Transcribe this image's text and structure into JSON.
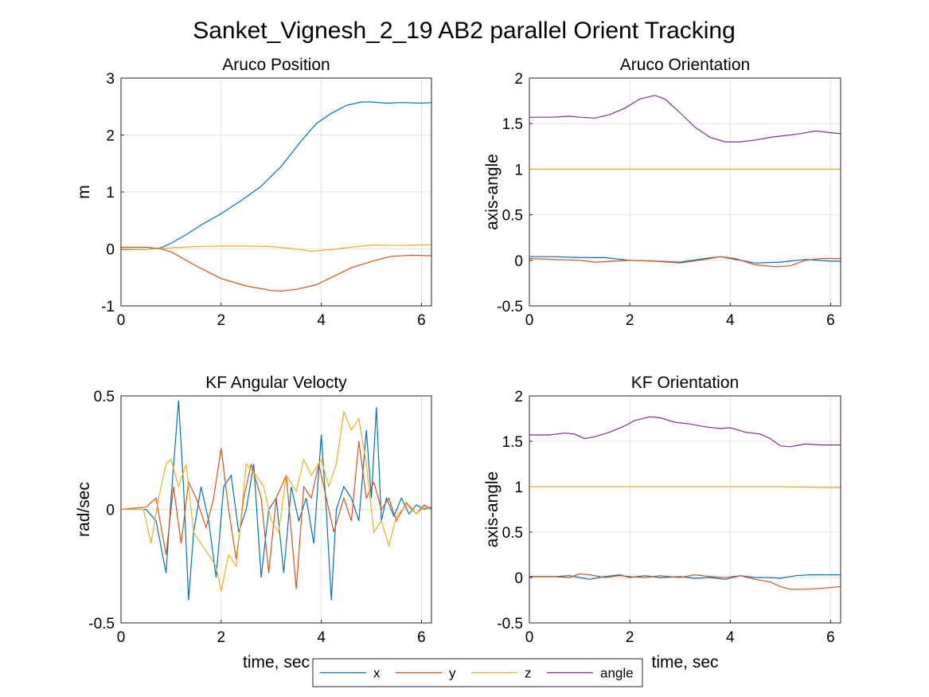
{
  "figure": {
    "title": "Sanket_Vignesh_2_19 AB2 parallel Orient Tracking"
  },
  "legend": {
    "placement": "bottom-center",
    "entries": [
      {
        "label": "x",
        "color": "#0072BD"
      },
      {
        "label": "y",
        "color": "#D95319"
      },
      {
        "label": "z",
        "color": "#EDB120"
      },
      {
        "label": "angle",
        "color": "#7E2F8E"
      }
    ]
  },
  "chart_data": [
    {
      "type": "line",
      "title": "Aruco Position",
      "xlabel": "",
      "ylabel": "m",
      "xlim": [
        0,
        6.2
      ],
      "ylim": [
        -1,
        3
      ],
      "xticks": [
        "0",
        "2",
        "4",
        "6"
      ],
      "yticks": [
        "-1",
        "0",
        "1",
        "2",
        "3"
      ],
      "grid": true,
      "series": [
        {
          "name": "x",
          "color": "#0072BD",
          "x": [
            0,
            0.5,
            0.8,
            1.0,
            1.3,
            1.6,
            2.0,
            2.4,
            2.8,
            3.2,
            3.6,
            3.9,
            4.2,
            4.5,
            4.8,
            5.0,
            5.3,
            5.6,
            6.0,
            6.2
          ],
          "y": [
            -0.01,
            -0.01,
            0.02,
            0.1,
            0.25,
            0.42,
            0.62,
            0.85,
            1.1,
            1.45,
            1.9,
            2.2,
            2.38,
            2.52,
            2.58,
            2.58,
            2.56,
            2.57,
            2.56,
            2.57
          ]
        },
        {
          "name": "y",
          "color": "#D95319",
          "x": [
            0,
            0.5,
            0.8,
            1.0,
            1.5,
            2.0,
            2.5,
            3.0,
            3.2,
            3.5,
            3.9,
            4.2,
            4.6,
            5.0,
            5.4,
            5.8,
            6.2
          ],
          "y": [
            0.03,
            0.03,
            0.0,
            -0.05,
            -0.3,
            -0.52,
            -0.65,
            -0.73,
            -0.74,
            -0.71,
            -0.63,
            -0.5,
            -0.33,
            -0.22,
            -0.13,
            -0.11,
            -0.12
          ]
        },
        {
          "name": "z",
          "color": "#EDB120",
          "x": [
            0,
            0.5,
            1.0,
            1.5,
            2.0,
            2.5,
            3.0,
            3.5,
            3.8,
            4.1,
            4.5,
            5.0,
            5.5,
            6.0,
            6.2
          ],
          "y": [
            0.0,
            -0.01,
            0.02,
            0.04,
            0.05,
            0.05,
            0.04,
            0.0,
            -0.04,
            -0.02,
            0.02,
            0.07,
            0.06,
            0.07,
            0.07
          ]
        }
      ]
    },
    {
      "type": "line",
      "title": "Aruco Orientation",
      "xlabel": "",
      "ylabel": "axis-angle",
      "xlim": [
        0,
        6.2
      ],
      "ylim": [
        -0.5,
        2
      ],
      "xticks": [
        "0",
        "2",
        "4",
        "6"
      ],
      "yticks": [
        "-0.5",
        "0",
        "0.5",
        "1",
        "1.5",
        "2"
      ],
      "grid": true,
      "series": [
        {
          "name": "x",
          "color": "#0072BD",
          "x": [
            0,
            0.5,
            1.0,
            1.5,
            2.0,
            2.5,
            3.0,
            3.5,
            3.8,
            4.1,
            4.5,
            5.0,
            5.5,
            6.0,
            6.2
          ],
          "y": [
            0.04,
            0.04,
            0.03,
            0.03,
            0.0,
            -0.01,
            -0.02,
            0.02,
            0.04,
            0.01,
            -0.03,
            -0.02,
            0.01,
            -0.01,
            -0.01
          ]
        },
        {
          "name": "y",
          "color": "#D95319",
          "x": [
            0,
            0.5,
            1.0,
            1.3,
            1.7,
            2.0,
            2.5,
            3.0,
            3.5,
            3.8,
            4.1,
            4.5,
            4.9,
            5.2,
            5.5,
            5.8,
            6.2
          ],
          "y": [
            0.02,
            0.01,
            0.0,
            -0.02,
            -0.01,
            0.0,
            -0.01,
            -0.03,
            0.01,
            0.04,
            0.02,
            -0.05,
            -0.07,
            -0.06,
            0.0,
            0.02,
            0.02
          ]
        },
        {
          "name": "z",
          "color": "#EDB120",
          "x": [
            0,
            1.0,
            2.0,
            3.0,
            4.0,
            5.0,
            6.0,
            6.2
          ],
          "y": [
            1.0,
            1.0,
            1.0,
            1.0,
            1.0,
            1.0,
            1.0,
            1.0
          ]
        },
        {
          "name": "angle",
          "color": "#7E2F8E",
          "x": [
            0,
            0.4,
            0.8,
            1.0,
            1.3,
            1.6,
            1.9,
            2.2,
            2.5,
            2.7,
            3.0,
            3.3,
            3.6,
            3.9,
            4.2,
            4.5,
            4.8,
            5.1,
            5.4,
            5.7,
            6.0,
            6.2
          ],
          "y": [
            1.57,
            1.57,
            1.58,
            1.57,
            1.56,
            1.6,
            1.67,
            1.77,
            1.81,
            1.77,
            1.62,
            1.46,
            1.35,
            1.3,
            1.3,
            1.32,
            1.35,
            1.37,
            1.39,
            1.42,
            1.4,
            1.39
          ]
        }
      ]
    },
    {
      "type": "line",
      "title": "KF Angular Velocty",
      "xlabel": "time, sec",
      "ylabel": "rad/sec",
      "xlim": [
        0,
        6.2
      ],
      "ylim": [
        -0.5,
        0.5
      ],
      "xticks": [
        "0",
        "2",
        "4",
        "6"
      ],
      "yticks": [
        "-0.5",
        "0",
        "0.5"
      ],
      "grid": true,
      "series": [
        {
          "name": "x",
          "color": "#0072BD",
          "x": [
            0,
            0.5,
            0.7,
            0.9,
            1.0,
            1.15,
            1.25,
            1.35,
            1.45,
            1.6,
            1.75,
            1.9,
            2.05,
            2.2,
            2.35,
            2.5,
            2.65,
            2.8,
            2.95,
            3.1,
            3.25,
            3.4,
            3.55,
            3.7,
            3.85,
            4.0,
            4.1,
            4.2,
            4.3,
            4.45,
            4.6,
            4.75,
            4.9,
            5.0,
            5.1,
            5.2,
            5.3,
            5.45,
            5.6,
            5.75,
            5.9,
            6.05,
            6.2
          ],
          "y": [
            0.0,
            0.0,
            -0.05,
            -0.28,
            0.05,
            0.48,
            0.1,
            -0.4,
            -0.1,
            0.1,
            -0.05,
            -0.3,
            0.1,
            0.15,
            -0.1,
            0.0,
            0.2,
            -0.3,
            0.0,
            0.05,
            -0.28,
            0.1,
            -0.05,
            0.05,
            -0.15,
            0.33,
            0.0,
            -0.4,
            0.0,
            0.1,
            0.05,
            -0.05,
            0.35,
            0.05,
            0.45,
            -0.05,
            0.05,
            -0.03,
            0.05,
            -0.02,
            0.02,
            0.0,
            0.01
          ]
        },
        {
          "name": "y",
          "color": "#D95319",
          "x": [
            0,
            0.5,
            0.7,
            0.9,
            1.05,
            1.2,
            1.35,
            1.5,
            1.7,
            1.85,
            2.0,
            2.15,
            2.3,
            2.45,
            2.6,
            2.8,
            2.95,
            3.1,
            3.3,
            3.5,
            3.65,
            3.8,
            3.95,
            4.1,
            4.25,
            4.45,
            4.6,
            4.75,
            4.9,
            5.05,
            5.2,
            5.35,
            5.5,
            5.7,
            5.9,
            6.05,
            6.2
          ],
          "y": [
            0.0,
            0.01,
            0.05,
            -0.2,
            0.1,
            -0.15,
            0.12,
            0.05,
            -0.08,
            0.05,
            0.27,
            0.0,
            -0.22,
            0.05,
            0.2,
            0.05,
            -0.28,
            0.05,
            0.15,
            -0.35,
            0.1,
            0.05,
            0.2,
            0.05,
            -0.1,
            0.05,
            -0.05,
            0.3,
            0.05,
            0.12,
            0.0,
            0.05,
            -0.05,
            0.03,
            -0.02,
            0.02,
            0.0
          ]
        },
        {
          "name": "z",
          "color": "#EDB120",
          "x": [
            0,
            0.45,
            0.6,
            0.75,
            0.9,
            1.0,
            1.15,
            1.3,
            1.45,
            1.6,
            1.75,
            1.9,
            2.0,
            2.15,
            2.3,
            2.5,
            2.7,
            2.85,
            3.0,
            3.15,
            3.3,
            3.5,
            3.65,
            3.8,
            4.0,
            4.15,
            4.3,
            4.45,
            4.6,
            4.75,
            4.9,
            5.05,
            5.2,
            5.35,
            5.5,
            5.7,
            5.9,
            6.05,
            6.2
          ],
          "y": [
            0.0,
            0.0,
            -0.15,
            0.05,
            0.2,
            0.22,
            0.1,
            0.2,
            -0.1,
            -0.15,
            -0.2,
            -0.25,
            -0.36,
            -0.2,
            -0.25,
            0.2,
            0.15,
            0.1,
            -0.05,
            -0.1,
            0.15,
            0.08,
            0.22,
            0.15,
            0.22,
            0.1,
            0.2,
            0.43,
            0.35,
            0.4,
            0.2,
            -0.1,
            -0.05,
            -0.16,
            -0.03,
            0.02,
            -0.02,
            0.01,
            0.0
          ]
        }
      ]
    },
    {
      "type": "line",
      "title": "KF Orientation",
      "xlabel": "time, sec",
      "ylabel": "axis-angle",
      "xlim": [
        0,
        6.2
      ],
      "ylim": [
        -0.5,
        2
      ],
      "xticks": [
        "0",
        "2",
        "4",
        "6"
      ],
      "yticks": [
        "-0.5",
        "0",
        "0.5",
        "1",
        "1.5",
        "2"
      ],
      "grid": true,
      "series": [
        {
          "name": "x",
          "color": "#0072BD",
          "x": [
            0,
            0.5,
            0.8,
            1.0,
            1.2,
            1.5,
            1.8,
            2.0,
            2.3,
            2.6,
            3.0,
            3.3,
            3.6,
            3.9,
            4.2,
            4.5,
            4.8,
            5.0,
            5.3,
            5.6,
            6.0,
            6.2
          ],
          "y": [
            0.01,
            0.01,
            0.02,
            0.0,
            -0.02,
            0.01,
            0.03,
            0.0,
            0.02,
            0.0,
            0.01,
            -0.01,
            0.0,
            -0.02,
            0.02,
            0.0,
            0.0,
            -0.01,
            0.02,
            0.03,
            0.03,
            0.03
          ]
        },
        {
          "name": "y",
          "color": "#D95319",
          "x": [
            0,
            0.5,
            0.8,
            1.0,
            1.2,
            1.5,
            1.8,
            2.0,
            2.3,
            2.6,
            3.0,
            3.3,
            3.6,
            3.9,
            4.2,
            4.5,
            4.8,
            5.0,
            5.2,
            5.5,
            5.8,
            6.2
          ],
          "y": [
            0.01,
            0.01,
            0.0,
            0.04,
            0.03,
            0.0,
            0.02,
            0.01,
            0.0,
            0.02,
            0.0,
            0.03,
            0.01,
            0.0,
            0.02,
            -0.02,
            -0.05,
            -0.1,
            -0.13,
            -0.13,
            -0.12,
            -0.1
          ]
        },
        {
          "name": "z",
          "color": "#EDB120",
          "x": [
            0,
            1.0,
            2.0,
            3.0,
            4.0,
            5.0,
            6.0,
            6.2
          ],
          "y": [
            1.0,
            1.0,
            1.0,
            1.0,
            1.0,
            1.0,
            0.99,
            0.99
          ]
        },
        {
          "name": "angle",
          "color": "#7E2F8E",
          "x": [
            0,
            0.4,
            0.7,
            0.9,
            1.1,
            1.3,
            1.6,
            1.9,
            2.1,
            2.4,
            2.6,
            2.9,
            3.2,
            3.5,
            3.8,
            4.0,
            4.3,
            4.6,
            4.8,
            5.0,
            5.2,
            5.5,
            5.8,
            6.2
          ],
          "y": [
            1.57,
            1.57,
            1.59,
            1.58,
            1.53,
            1.55,
            1.6,
            1.67,
            1.73,
            1.77,
            1.76,
            1.71,
            1.69,
            1.66,
            1.64,
            1.65,
            1.6,
            1.58,
            1.53,
            1.45,
            1.44,
            1.47,
            1.46,
            1.46
          ]
        }
      ]
    }
  ]
}
